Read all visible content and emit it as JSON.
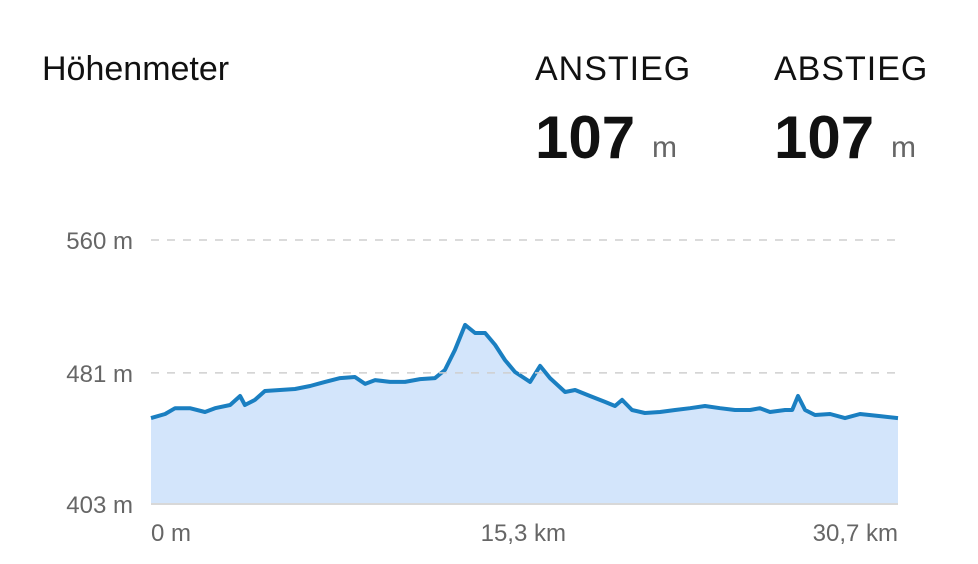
{
  "header": {
    "title": "Höhenmeter",
    "stats": [
      {
        "label": "ANSTIEG",
        "value": 107,
        "unit": "m"
      },
      {
        "label": "ABSTIEG",
        "value": 107,
        "unit": "m"
      }
    ]
  },
  "chart_data": {
    "type": "area",
    "x": [
      0,
      0.58,
      0.99,
      1.6,
      2.22,
      2.63,
      3.25,
      3.66,
      3.86,
      4.27,
      4.68,
      5.3,
      5.92,
      6.54,
      7.15,
      7.77,
      8.38,
      8.8,
      9.21,
      9.82,
      10.44,
      11.06,
      11.67,
      12.08,
      12.49,
      12.91,
      13.32,
      13.73,
      14.14,
      14.55,
      14.96,
      15.58,
      15.99,
      16.4,
      17.02,
      17.43,
      18.04,
      18.66,
      19.07,
      19.36,
      19.77,
      20.3,
      20.92,
      21.54,
      22.15,
      22.77,
      23.39,
      24.0,
      24.62,
      25.03,
      25.44,
      26.06,
      26.35,
      26.59,
      26.88,
      27.29,
      27.91,
      28.52,
      29.14,
      29.96,
      30.7
    ],
    "values": [
      454.1,
      456.5,
      460,
      460,
      457.7,
      460,
      461.9,
      467.2,
      461.9,
      464.9,
      470.2,
      470.8,
      471.4,
      473.2,
      475.6,
      477.9,
      478.5,
      474.4,
      476.7,
      475.6,
      475.6,
      477.3,
      477.9,
      482.7,
      494.6,
      509.5,
      504.7,
      504.7,
      497.6,
      488.6,
      481.5,
      475.6,
      485.1,
      477.9,
      469.6,
      470.8,
      467.2,
      463.7,
      461.3,
      464.9,
      458.9,
      457.1,
      457.7,
      458.9,
      460,
      461.3,
      460,
      458.9,
      458.9,
      460,
      457.7,
      458.9,
      458.9,
      467.2,
      458.9,
      455.9,
      456.5,
      454.1,
      456.5,
      455.3,
      454.1
    ],
    "color": "#1a7fc1",
    "fill": "#d3e5fb",
    "xlim": [
      0,
      30.7
    ],
    "ylim": [
      403,
      560
    ],
    "xticks": [
      {
        "value": 0,
        "label": "0 m"
      },
      {
        "value": 15.3,
        "label": "15,3 km"
      },
      {
        "value": 30.7,
        "label": "30,7 km"
      }
    ],
    "yticks": [
      {
        "value": 403,
        "label": "403 m"
      },
      {
        "value": 481,
        "label": "481 m"
      },
      {
        "value": 560,
        "label": "560 m"
      }
    ],
    "grid": true
  }
}
